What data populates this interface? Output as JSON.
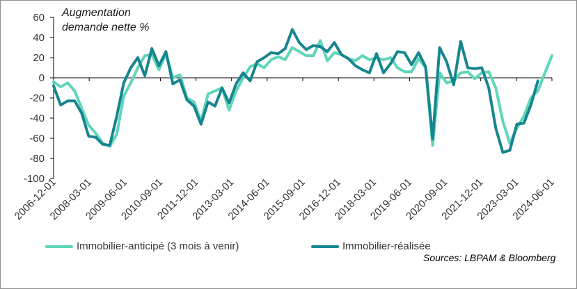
{
  "colors": {
    "anticipe": "#5fd6b8",
    "realise": "#17858f",
    "axis": "#000000",
    "text": "#333333"
  },
  "annotations": {
    "title_line1": "Augmentation",
    "title_line2": "demande nette %",
    "source": "Sources: LBPAM & Bloomberg"
  },
  "chart_data": {
    "type": "line",
    "title": "Augmentation demande nette %",
    "xlabel": "",
    "ylabel": "",
    "ylim": [
      -100,
      60
    ],
    "yticks": [
      -100,
      -80,
      -60,
      -40,
      -20,
      0,
      20,
      40,
      60
    ],
    "xtick_labels": [
      "2006-12-01",
      "2008-03-01",
      "2009-06-01",
      "2010-09-01",
      "2011-12-01",
      "2013-03-01",
      "2014-06-01",
      "2015-09-01",
      "2016-12-01",
      "2018-03-01",
      "2019-06-01",
      "2020-09-01",
      "2021-12-01",
      "2023-03-01",
      "2024-06-01"
    ],
    "grid": false,
    "legend_position": "bottom",
    "x_start": "2006-12-01",
    "x_step_months": 3,
    "series": [
      {
        "name": "Immobilier-anticipé (3 mois à venir)",
        "values": [
          -4,
          -9,
          -5,
          -13,
          -30,
          -47,
          -55,
          -65,
          -68,
          -56,
          -18,
          -5,
          10,
          22,
          23,
          8,
          24,
          0,
          3,
          -20,
          -24,
          -43,
          -16,
          -13,
          -10,
          -32,
          -13,
          0,
          11,
          14,
          10,
          18,
          21,
          18,
          30,
          26,
          22,
          22,
          37,
          17,
          25,
          23,
          19,
          17,
          22,
          18,
          20,
          18,
          20,
          10,
          6,
          6,
          19,
          10,
          -67,
          5,
          -5,
          -3,
          5,
          6,
          -1,
          5,
          6,
          -10,
          -43,
          -65,
          -50,
          -38,
          -20,
          -13,
          5,
          22
        ]
      },
      {
        "name": "Immobilier-réalisée",
        "values": [
          -8,
          -27,
          -23,
          -23,
          -35,
          -58,
          -59,
          -66,
          -67,
          -38,
          -5,
          10,
          20,
          2,
          29,
          12,
          26,
          -6,
          -2,
          -22,
          -28,
          -46,
          -24,
          -28,
          -10,
          -25,
          -6,
          5,
          -3,
          16,
          20,
          25,
          24,
          29,
          48,
          35,
          28,
          32,
          31,
          26,
          35,
          23,
          19,
          12,
          8,
          5,
          24,
          5,
          14,
          26,
          25,
          13,
          25,
          11,
          -61,
          30,
          16,
          -7,
          36,
          10,
          9,
          10,
          -10,
          -50,
          -74,
          -72,
          -46,
          -45,
          -27,
          -3
        ]
      }
    ]
  }
}
